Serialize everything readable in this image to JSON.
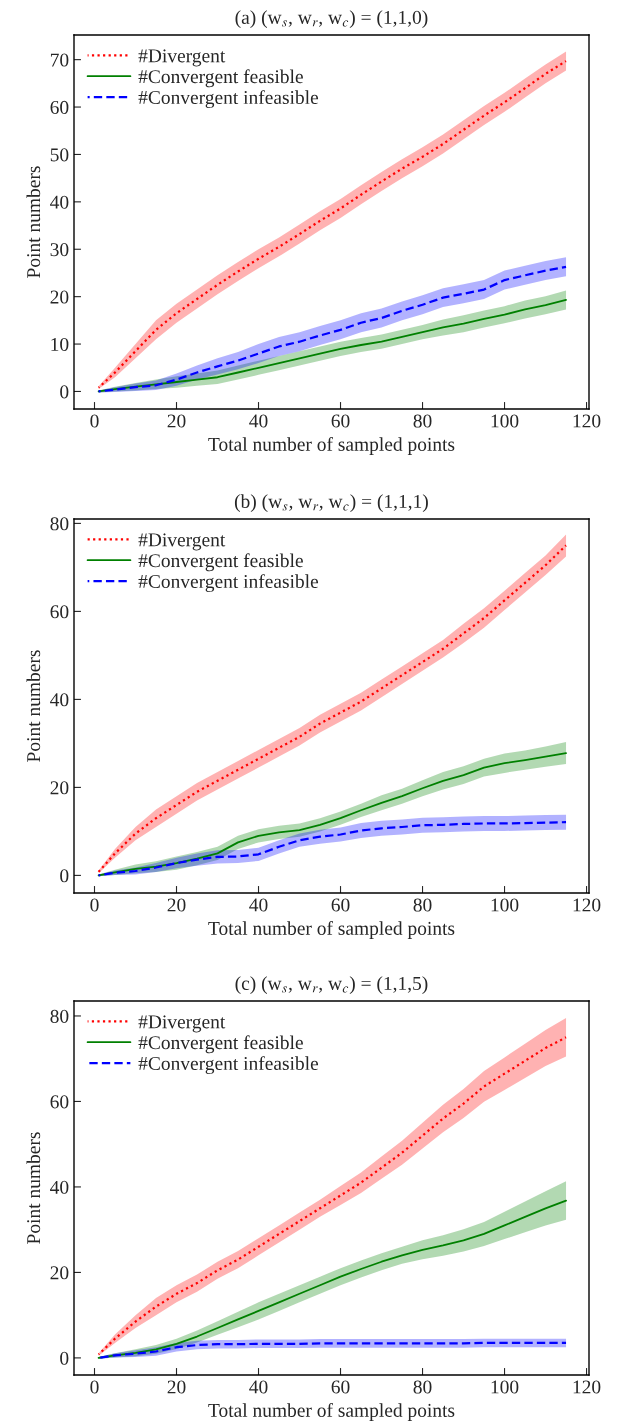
{
  "chart_data": [
    {
      "type": "line",
      "title": "(a) (w$_{s}$, w$_{r}$, w$_{c}$) = (1,1,0)",
      "xlabel": "Total number of sampled points",
      "ylabel": "Point numbers",
      "x": [
        1,
        5,
        10,
        15,
        20,
        25,
        30,
        35,
        40,
        45,
        50,
        55,
        60,
        65,
        70,
        75,
        80,
        85,
        90,
        95,
        100,
        105,
        110,
        115
      ],
      "xlim": [
        -5,
        120.6
      ],
      "ylim": [
        -3.7,
        75.2
      ],
      "xticks": [
        0,
        20,
        40,
        60,
        80,
        100,
        120
      ],
      "yticks": [
        0,
        10,
        20,
        30,
        40,
        50,
        60,
        70
      ],
      "grid": false,
      "legend": "top left",
      "series": [
        {
          "name": "#Divergent",
          "color": "#ff0000",
          "line_style": "dotted",
          "values": [
            0.8,
            4,
            8.5,
            13,
            16.5,
            19.5,
            22.5,
            25.3,
            28,
            30.5,
            33.2,
            36,
            38.6,
            41.5,
            44.3,
            47,
            49.5,
            52.2,
            55.2,
            58.2,
            61,
            64,
            67,
            69.7
          ],
          "lower": [
            0.5,
            3,
            7,
            11,
            14.5,
            17.5,
            20.5,
            23.3,
            26,
            28.5,
            31.2,
            34,
            36.6,
            39.5,
            42.3,
            45,
            47.5,
            50.2,
            53.2,
            56.2,
            59,
            62,
            65,
            67.7
          ],
          "upper": [
            1.1,
            5,
            10,
            15,
            18.5,
            21.5,
            24.5,
            27.3,
            30,
            32.5,
            35.2,
            38,
            40.6,
            43.5,
            46.3,
            49,
            51.5,
            54.2,
            57.2,
            60.2,
            63,
            66,
            69,
            71.7
          ]
        },
        {
          "name": "#Convergent feasible",
          "color": "#008000",
          "line_style": "solid",
          "values": [
            0,
            0.5,
            1,
            1.5,
            2,
            2.5,
            3,
            4,
            5,
            6,
            7,
            8,
            9,
            9.8,
            10.5,
            11.5,
            12.5,
            13.5,
            14.3,
            15.3,
            16.2,
            17.3,
            18.2,
            19.3
          ],
          "lower": [
            -0.2,
            0,
            0.2,
            0.5,
            0.8,
            1.2,
            1.6,
            2.5,
            3.5,
            4.5,
            5.5,
            6.5,
            7.5,
            8.3,
            9,
            10,
            11,
            11.8,
            12.5,
            13.5,
            14.4,
            15.4,
            16.3,
            17.3
          ],
          "upper": [
            0.2,
            1,
            1.8,
            2.5,
            3.2,
            3.8,
            4.4,
            5.5,
            6.5,
            7.5,
            8.5,
            9.5,
            10.5,
            11.3,
            12,
            13,
            14,
            15.2,
            16.1,
            17.1,
            18,
            19.2,
            20.1,
            21.3
          ]
        },
        {
          "name": "#Convergent infeasible",
          "color": "#0000ff",
          "line_style": "dashed",
          "values": [
            0,
            0.4,
            0.9,
            1.3,
            2.5,
            4,
            5.3,
            6.5,
            8,
            9.5,
            10.5,
            11.8,
            13,
            14.5,
            15.5,
            17,
            18.3,
            19.8,
            20.6,
            21.5,
            23.5,
            24.5,
            25.5,
            26.3
          ],
          "lower": [
            -0.2,
            -0.1,
            0.1,
            0.3,
            1.2,
            2.5,
            3.6,
            4.7,
            6,
            7.5,
            8.5,
            9.8,
            11,
            12.5,
            13.5,
            15,
            16.3,
            17.8,
            18.6,
            19.5,
            21.5,
            22.5,
            23.5,
            24.3
          ],
          "upper": [
            0.2,
            0.9,
            1.7,
            2.3,
            3.8,
            5.5,
            7,
            8.3,
            10,
            11.5,
            12.5,
            13.8,
            15,
            16.5,
            17.5,
            19,
            20.3,
            21.8,
            22.6,
            23.5,
            25.5,
            26.5,
            27.5,
            28.3
          ]
        }
      ]
    },
    {
      "type": "line",
      "title": "(b) (w$_{s}$, w$_{r}$, w$_{c}$) = (1,1,1)",
      "xlabel": "Total number of sampled points",
      "ylabel": "Point numbers",
      "x": [
        1,
        5,
        10,
        15,
        20,
        25,
        30,
        35,
        40,
        45,
        50,
        55,
        60,
        65,
        70,
        75,
        80,
        85,
        90,
        95,
        100,
        105,
        110,
        115
      ],
      "xlim": [
        -5,
        120.6
      ],
      "ylim": [
        -4,
        81
      ],
      "xticks": [
        0,
        20,
        40,
        60,
        80,
        100,
        120
      ],
      "yticks": [
        0,
        20,
        40,
        60,
        80
      ],
      "grid": false,
      "legend": "top left",
      "series": [
        {
          "name": "#Divergent",
          "color": "#ff0000",
          "line_style": "dotted",
          "values": [
            0.8,
            5,
            9.5,
            13,
            16,
            19,
            21.5,
            24,
            26.5,
            29,
            31.5,
            34.5,
            37,
            39.5,
            42.5,
            45.5,
            48.5,
            51.5,
            55,
            58.5,
            62.5,
            66.5,
            70.5,
            75
          ],
          "lower": [
            0.5,
            4,
            8,
            11,
            14,
            17,
            19.5,
            22,
            24.5,
            27,
            29.5,
            32.5,
            35,
            37.5,
            40.5,
            43.5,
            46.5,
            49.5,
            52.8,
            56.3,
            60.3,
            64.3,
            68.3,
            72.5
          ],
          "upper": [
            1.1,
            6,
            11,
            15,
            18,
            21,
            23.5,
            26,
            28.5,
            31,
            33.5,
            36.5,
            39,
            41.5,
            44.5,
            47.5,
            50.5,
            53.5,
            57.2,
            60.7,
            64.7,
            68.7,
            72.7,
            77.5
          ]
        },
        {
          "name": "#Convergent feasible",
          "color": "#008000",
          "line_style": "solid",
          "values": [
            0,
            0.7,
            1.5,
            2,
            2.8,
            3.8,
            5,
            7.5,
            9,
            9.8,
            10.3,
            11.5,
            13,
            14.8,
            16.5,
            18,
            19.8,
            21.5,
            22.8,
            24.5,
            25.5,
            26.2,
            27,
            27.8
          ],
          "lower": [
            -0.2,
            0.1,
            0.5,
            0.8,
            1.3,
            2.3,
            3.5,
            6,
            7.5,
            8.3,
            8.8,
            10,
            11.5,
            13.3,
            14.8,
            16.3,
            18,
            19.5,
            20.8,
            22.5,
            23.3,
            24,
            24.7,
            25.3
          ],
          "upper": [
            0.2,
            1.3,
            2.5,
            3.2,
            4.3,
            5.3,
            6.5,
            9,
            10.5,
            11.3,
            11.8,
            13,
            14.5,
            16.3,
            18.2,
            19.7,
            21.6,
            23.5,
            24.8,
            26.5,
            27.7,
            28.4,
            29.3,
            30.3
          ]
        },
        {
          "name": "#Convergent infeasible",
          "color": "#0000ff",
          "line_style": "dashed",
          "values": [
            0,
            0.6,
            1,
            1.8,
            2.8,
            3.6,
            4.2,
            4.3,
            4.8,
            6.5,
            8,
            8.8,
            9.3,
            10.2,
            10.7,
            11,
            11.4,
            11.5,
            11.7,
            11.8,
            11.8,
            11.9,
            12,
            12.1
          ],
          "lower": [
            -0.2,
            0.1,
            0.2,
            0.8,
            1.6,
            2.2,
            2.7,
            2.8,
            3.3,
            5,
            6.5,
            7.2,
            7.7,
            8.5,
            9,
            9.3,
            9.7,
            9.8,
            10,
            10.1,
            10.1,
            10.2,
            10.3,
            10.4
          ],
          "upper": [
            0.2,
            1.1,
            1.8,
            2.8,
            4,
            5,
            5.7,
            5.8,
            6.3,
            8,
            9.5,
            10.4,
            10.9,
            11.9,
            12.4,
            12.7,
            13.1,
            13.2,
            13.4,
            13.5,
            13.5,
            13.6,
            13.7,
            13.8
          ]
        }
      ]
    },
    {
      "type": "line",
      "title": "(c) (w$_{s}$, w$_{r}$, w$_{c}$) = (1,1,5)",
      "xlabel": "Total number of sampled points",
      "ylabel": "Point numbers",
      "x": [
        1,
        5,
        10,
        15,
        20,
        25,
        30,
        35,
        40,
        45,
        50,
        55,
        60,
        65,
        70,
        75,
        80,
        85,
        90,
        95,
        100,
        105,
        110,
        115
      ],
      "xlim": [
        -5,
        120.6
      ],
      "ylim": [
        -4,
        83.5
      ],
      "xticks": [
        0,
        20,
        40,
        60,
        80,
        100,
        120
      ],
      "yticks": [
        0,
        20,
        40,
        60,
        80
      ],
      "grid": false,
      "legend": "top left",
      "series": [
        {
          "name": "#Divergent",
          "color": "#ff0000",
          "line_style": "dotted",
          "values": [
            0.8,
            4.5,
            8.5,
            12,
            15,
            17.5,
            20.5,
            23,
            26,
            29,
            32,
            35,
            38,
            41,
            44.5,
            48,
            52,
            56,
            59.5,
            63.5,
            66.5,
            69.5,
            72.5,
            75
          ],
          "lower": [
            0.5,
            3.5,
            7,
            10,
            13,
            15.5,
            18.5,
            21,
            24,
            27,
            30,
            33,
            35.8,
            38.6,
            41.9,
            45.2,
            49,
            52.8,
            56.1,
            59.9,
            62.7,
            65.5,
            68.3,
            70.5
          ],
          "upper": [
            1.1,
            5.5,
            10,
            14,
            17,
            19.5,
            22.5,
            25,
            28,
            31,
            34,
            37,
            40.2,
            43.4,
            47.1,
            50.8,
            55,
            59.2,
            62.9,
            67.1,
            70.3,
            73.5,
            76.7,
            79.5
          ]
        },
        {
          "name": "#Convergent feasible",
          "color": "#008000",
          "line_style": "solid",
          "values": [
            0,
            0.6,
            1.2,
            2,
            3.3,
            5,
            7,
            9,
            11,
            13,
            15,
            17,
            19,
            20.8,
            22.5,
            24,
            25.3,
            26.3,
            27.5,
            29,
            31,
            33,
            35,
            36.8
          ],
          "lower": [
            -0.2,
            0.1,
            0.4,
            1,
            2.1,
            3.6,
            5.4,
            7.2,
            9,
            11,
            13,
            15,
            17,
            18.8,
            20.5,
            22,
            23.1,
            23.9,
            24.9,
            26.2,
            27.8,
            29.4,
            31,
            32.3
          ],
          "upper": [
            0.2,
            1.1,
            2,
            3,
            4.5,
            6.4,
            8.6,
            10.8,
            13,
            15,
            17,
            19,
            21,
            22.8,
            24.5,
            26,
            27.5,
            28.7,
            30.1,
            31.8,
            34.2,
            36.6,
            39,
            41.3
          ]
        },
        {
          "name": "#Convergent infeasible",
          "color": "#0000ff",
          "line_style": "dashed",
          "values": [
            0,
            0.6,
            1,
            1.5,
            2.5,
            3,
            3.2,
            3.2,
            3.3,
            3.3,
            3.3,
            3.4,
            3.4,
            3.4,
            3.4,
            3.4,
            3.4,
            3.4,
            3.4,
            3.5,
            3.5,
            3.5,
            3.5,
            3.5
          ],
          "lower": [
            -0.2,
            0.1,
            0.2,
            0.5,
            1.5,
            2,
            2.2,
            2.2,
            2.3,
            2.3,
            2.3,
            2.4,
            2.4,
            2.4,
            2.4,
            2.4,
            2.4,
            2.4,
            2.4,
            2.5,
            2.5,
            2.5,
            2.5,
            2.5
          ],
          "upper": [
            0.2,
            1.1,
            1.8,
            2.5,
            3.5,
            4,
            4.2,
            4.2,
            4.3,
            4.3,
            4.3,
            4.4,
            4.4,
            4.4,
            4.4,
            4.4,
            4.4,
            4.4,
            4.4,
            4.5,
            4.5,
            4.5,
            4.5,
            4.5
          ]
        }
      ]
    }
  ]
}
